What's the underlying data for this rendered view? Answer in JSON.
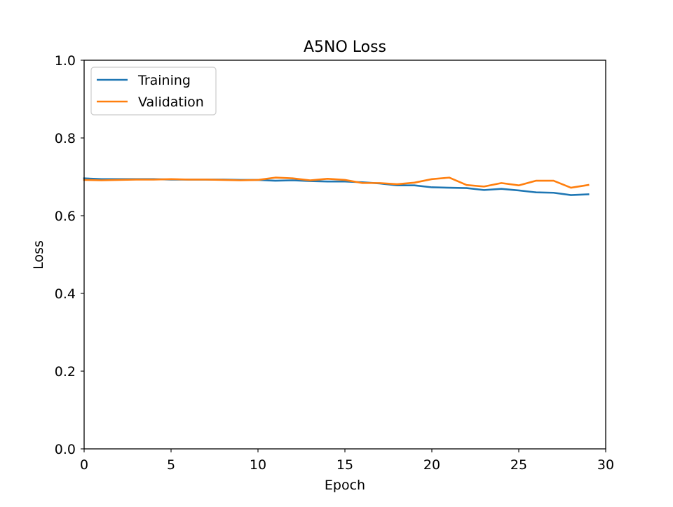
{
  "chart_data": {
    "type": "line",
    "title": "A5NO Loss",
    "xlabel": "Epoch",
    "ylabel": "Loss",
    "xlim": [
      0,
      30
    ],
    "ylim": [
      0.0,
      1.0
    ],
    "xticks": [
      0,
      5,
      10,
      15,
      20,
      25,
      30
    ],
    "yticks": [
      0.0,
      0.2,
      0.4,
      0.6,
      0.8,
      1.0
    ],
    "xtick_labels": [
      "0",
      "5",
      "10",
      "15",
      "20",
      "25",
      "30"
    ],
    "ytick_labels": [
      "0.0",
      "0.2",
      "0.4",
      "0.6",
      "0.8",
      "1.0"
    ],
    "grid": false,
    "legend_position": "top-left",
    "x": [
      0,
      1,
      2,
      3,
      4,
      5,
      6,
      7,
      8,
      9,
      10,
      11,
      12,
      13,
      14,
      15,
      16,
      17,
      18,
      19,
      20,
      21,
      22,
      23,
      24,
      25,
      26,
      27,
      28,
      29
    ],
    "series": [
      {
        "name": "Training",
        "color": "#1f77b4",
        "values": [
          0.696,
          0.694,
          0.694,
          0.694,
          0.694,
          0.693,
          0.693,
          0.693,
          0.693,
          0.692,
          0.692,
          0.69,
          0.691,
          0.689,
          0.688,
          0.688,
          0.686,
          0.683,
          0.678,
          0.678,
          0.673,
          0.672,
          0.671,
          0.666,
          0.669,
          0.665,
          0.66,
          0.659,
          0.653,
          0.655
        ]
      },
      {
        "name": "Validation",
        "color": "#ff7f0e",
        "values": [
          0.692,
          0.691,
          0.692,
          0.693,
          0.693,
          0.694,
          0.693,
          0.693,
          0.692,
          0.691,
          0.692,
          0.698,
          0.696,
          0.691,
          0.695,
          0.692,
          0.684,
          0.684,
          0.681,
          0.685,
          0.694,
          0.698,
          0.679,
          0.675,
          0.684,
          0.678,
          0.69,
          0.69,
          0.672,
          0.679
        ]
      }
    ]
  }
}
